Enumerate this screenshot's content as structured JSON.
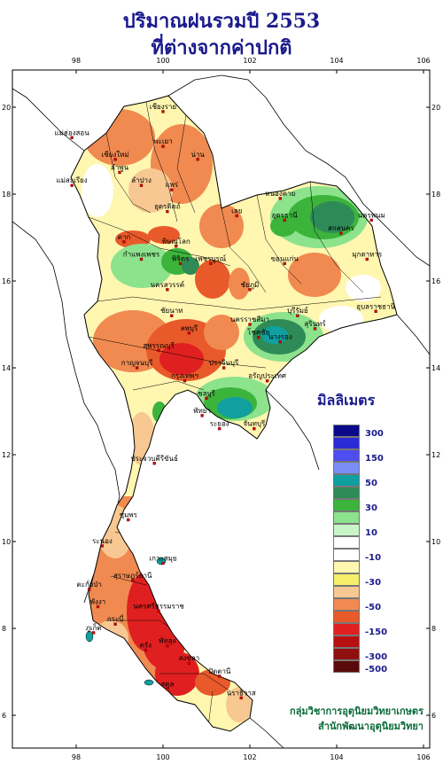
{
  "title_line1": "ปริมาณฝนรวมปี 2553",
  "title_line2": "ที่ต่างจากค่าปกติ",
  "lon_ticks": [
    "98",
    "100",
    "102",
    "104",
    "106"
  ],
  "lat_ticks": [
    "20",
    "18",
    "16",
    "14",
    "12",
    "10",
    "8",
    "6"
  ],
  "legend": {
    "title": "มิลลิเมตร",
    "classes": [
      {
        "color": "#0a0a8a",
        "label": "300"
      },
      {
        "color": "#2a2ad6",
        "label": ""
      },
      {
        "color": "#4d4df0",
        "label": "150"
      },
      {
        "color": "#7a8ef5",
        "label": ""
      },
      {
        "color": "#10a0a0",
        "label": "50"
      },
      {
        "color": "#2e8b57",
        "label": ""
      },
      {
        "color": "#3cb43c",
        "label": "30"
      },
      {
        "color": "#8ce38c",
        "label": ""
      },
      {
        "color": "#c8f5c8",
        "label": "10"
      },
      {
        "color": "#ffffff",
        "label": ""
      },
      {
        "color": "#ffffff",
        "label": "-10"
      },
      {
        "color": "#fff6b0",
        "label": ""
      },
      {
        "color": "#f5ef6a",
        "label": "-30"
      },
      {
        "color": "#f7c892",
        "label": ""
      },
      {
        "color": "#f08a50",
        "label": "-50"
      },
      {
        "color": "#e85a2a",
        "label": ""
      },
      {
        "color": "#e02020",
        "label": "-150"
      },
      {
        "color": "#b81010",
        "label": ""
      },
      {
        "color": "#901010",
        "label": "-300"
      },
      {
        "color": "#5a0a0a",
        "label": "-500"
      }
    ]
  },
  "places": [
    {
      "name": "เชียงราย",
      "lon": 100.0,
      "lat": 19.9
    },
    {
      "name": "แม่ฮ่องสอน",
      "lon": 97.9,
      "lat": 19.3
    },
    {
      "name": "พะเยา",
      "lon": 100.0,
      "lat": 19.1
    },
    {
      "name": "เชียงใหม่",
      "lon": 98.9,
      "lat": 18.8
    },
    {
      "name": "ลำพูน",
      "lon": 99.0,
      "lat": 18.5
    },
    {
      "name": "น่าน",
      "lon": 100.8,
      "lat": 18.8
    },
    {
      "name": "แพร่",
      "lon": 100.2,
      "lat": 18.1
    },
    {
      "name": "ลำปาง",
      "lon": 99.5,
      "lat": 18.2
    },
    {
      "name": "แม่สะเรียง",
      "lon": 97.9,
      "lat": 18.2
    },
    {
      "name": "อุตรดิตถ์",
      "lon": 100.1,
      "lat": 17.6
    },
    {
      "name": "หนองคาย",
      "lon": 102.7,
      "lat": 17.9
    },
    {
      "name": "อุดรธานี",
      "lon": 102.8,
      "lat": 17.4
    },
    {
      "name": "นครพนม",
      "lon": 104.8,
      "lat": 17.4
    },
    {
      "name": "สกลนคร",
      "lon": 104.1,
      "lat": 17.1
    },
    {
      "name": "เลย",
      "lon": 101.7,
      "lat": 17.5
    },
    {
      "name": "ตาก",
      "lon": 99.1,
      "lat": 16.9
    },
    {
      "name": "พิษณุโลก",
      "lon": 100.3,
      "lat": 16.8
    },
    {
      "name": "มุกดาหาร",
      "lon": 104.7,
      "lat": 16.5
    },
    {
      "name": "กำแพงเพชร",
      "lon": 99.5,
      "lat": 16.5
    },
    {
      "name": "พิจิตร",
      "lon": 100.4,
      "lat": 16.4
    },
    {
      "name": "เพชรบูรณ์",
      "lon": 101.1,
      "lat": 16.4
    },
    {
      "name": "ขอนแก่น",
      "lon": 102.8,
      "lat": 16.4
    },
    {
      "name": "นครสวรรค์",
      "lon": 100.1,
      "lat": 15.8
    },
    {
      "name": "ชัยภูมิ",
      "lon": 102.0,
      "lat": 15.8
    },
    {
      "name": "อุบลราชธานี",
      "lon": 104.9,
      "lat": 15.3
    },
    {
      "name": "ชัยนาท",
      "lon": 100.2,
      "lat": 15.2
    },
    {
      "name": "บุรีรัมย์",
      "lon": 103.1,
      "lat": 15.2
    },
    {
      "name": "สุรินทร์",
      "lon": 103.5,
      "lat": 14.9
    },
    {
      "name": "นครราชสีมา",
      "lon": 102.0,
      "lat": 15.0
    },
    {
      "name": "ลพบุรี",
      "lon": 100.6,
      "lat": 14.8
    },
    {
      "name": "โชคชัย",
      "lon": 102.2,
      "lat": 14.7
    },
    {
      "name": "นางรอง",
      "lon": 102.7,
      "lat": 14.6
    },
    {
      "name": "สุพรรณบุรี",
      "lon": 99.9,
      "lat": 14.4
    },
    {
      "name": "กาญจนบุรี",
      "lon": 99.4,
      "lat": 14.0
    },
    {
      "name": "ปราจีนบุรี",
      "lon": 101.4,
      "lat": 14.0
    },
    {
      "name": "กรุงเทพฯ",
      "lon": 100.5,
      "lat": 13.7
    },
    {
      "name": "อรัญประเทศ",
      "lon": 102.4,
      "lat": 13.7
    },
    {
      "name": "ชลบุรี",
      "lon": 101.0,
      "lat": 13.3
    },
    {
      "name": "พัทยา",
      "lon": 100.9,
      "lat": 12.9
    },
    {
      "name": "ระยอง",
      "lon": 101.3,
      "lat": 12.6
    },
    {
      "name": "จันทบุรี",
      "lon": 102.1,
      "lat": 12.6
    },
    {
      "name": "ประจวบคีรีขันธ์",
      "lon": 99.8,
      "lat": 11.8
    },
    {
      "name": "ชุมพร",
      "lon": 99.2,
      "lat": 10.5
    },
    {
      "name": "ระนอง",
      "lon": 98.6,
      "lat": 9.9
    },
    {
      "name": "เกาะสมุย",
      "lon": 100.0,
      "lat": 9.5
    },
    {
      "name": "สุราษฎร์ธานี",
      "lon": 99.3,
      "lat": 9.1
    },
    {
      "name": "ตะกั่วป่า",
      "lon": 98.3,
      "lat": 8.9
    },
    {
      "name": "นครศรีธรรมราช",
      "lon": 99.9,
      "lat": 8.4
    },
    {
      "name": "พังงา",
      "lon": 98.5,
      "lat": 8.5
    },
    {
      "name": "ภูเก็ต",
      "lon": 98.4,
      "lat": 7.9
    },
    {
      "name": "กระบี่",
      "lon": 98.9,
      "lat": 8.1
    },
    {
      "name": "ตรัง",
      "lon": 99.6,
      "lat": 7.5
    },
    {
      "name": "พัทลุง",
      "lon": 100.1,
      "lat": 7.6
    },
    {
      "name": "สงขลา",
      "lon": 100.6,
      "lat": 7.2
    },
    {
      "name": "สตูล",
      "lon": 100.1,
      "lat": 6.6
    },
    {
      "name": "ปัตตานี",
      "lon": 101.3,
      "lat": 6.9
    },
    {
      "name": "นราธิวาส",
      "lon": 101.8,
      "lat": 6.4
    }
  ],
  "credit_line1": "กลุ่มวิชาการอุตุนิยมวิทยาเกษตร",
  "credit_line2": "สำนักพัฒนาอุตุนิยมวิทยา"
}
